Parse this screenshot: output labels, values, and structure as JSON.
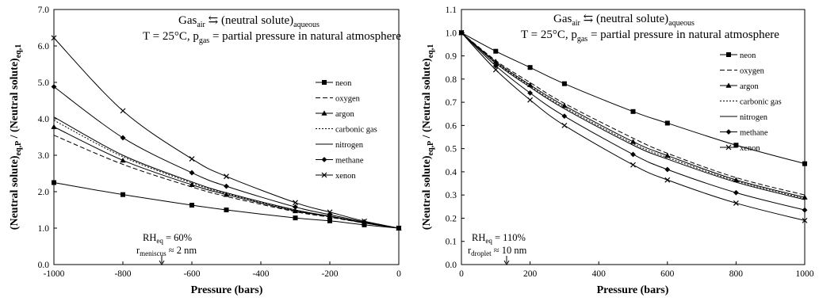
{
  "figure": {
    "panels": [
      {
        "equation": {
          "gas": "Gas",
          "gas_sub": "air",
          "arrow": " ⇆ (neutral solute)",
          "aq_sub": "aqueous"
        },
        "condition": {
          "t": "T = 25°C, p",
          "p_sub": "gas",
          "rest": " = partial pressure in natural atmosphere"
        },
        "rh_note": {
          "rh": "RH",
          "rh_sub": "eq",
          "rh_val": " = 60%",
          "r": "r",
          "r_sub": "meniscus",
          "r_val": " ≈ 2 nm"
        }
      },
      {
        "equation": {
          "gas": "Gas",
          "gas_sub": "air",
          "arrow": " ⇆ (neutral solute)",
          "aq_sub": "aqueous"
        },
        "condition": {
          "t": "T = 25°C, p",
          "p_sub": "gas",
          "rest": " = partial pressure in natural atmosphere"
        },
        "rh_note": {
          "rh": "RH",
          "rh_sub": "eq",
          "rh_val": " = 110%",
          "r": "r",
          "r_sub": "droplet",
          "r_val": " ≈ 10 nm"
        }
      }
    ],
    "ylabel": {
      "a": "(Neutral solute)",
      "a_sub": "eq,P",
      "b": " / (Neutral solute)",
      "b_sub": "eq,1"
    },
    "xlabel": "Pressure (bars)"
  },
  "chart_data": [
    {
      "type": "line",
      "xlabel": "Pressure (bars)",
      "xlim": [
        -1000,
        0
      ],
      "ylim": [
        0.0,
        7.0
      ],
      "x_ticks": [
        "-1000",
        "-800",
        "-600",
        "-400",
        "-200",
        "0"
      ],
      "y_ticks": [
        "0.0",
        "1.0",
        "2.0",
        "3.0",
        "4.0",
        "5.0",
        "6.0",
        "7.0"
      ],
      "legend": "center-right",
      "grid": false,
      "series": [
        {
          "name": "neon",
          "marker": "square",
          "dash": "",
          "x": [
            -1000,
            -800,
            -600,
            -500,
            -300,
            -200,
            -100,
            0
          ],
          "y": [
            2.25,
            1.92,
            1.63,
            1.5,
            1.28,
            1.2,
            1.09,
            1.0
          ]
        },
        {
          "name": "oxygen",
          "marker": "none",
          "dash": "6,3",
          "x": [
            -1000,
            -800,
            -600,
            -500,
            -300,
            -200,
            -100,
            0
          ],
          "y": [
            3.55,
            2.75,
            2.13,
            1.87,
            1.45,
            1.3,
            1.14,
            1.0
          ]
        },
        {
          "name": "argon",
          "marker": "triangle",
          "dash": "",
          "x": [
            -1000,
            -800,
            -600,
            -500,
            -300,
            -200,
            -100,
            0
          ],
          "y": [
            3.78,
            2.86,
            2.19,
            1.92,
            1.47,
            1.32,
            1.14,
            1.0
          ]
        },
        {
          "name": "carbonic gas",
          "marker": "none",
          "dash": "2,2",
          "x": [
            -1000,
            -800,
            -600,
            -500,
            -300,
            -200,
            -100,
            0
          ],
          "y": [
            3.96,
            2.96,
            2.24,
            1.95,
            1.49,
            1.33,
            1.15,
            1.0
          ]
        },
        {
          "name": "nitrogen",
          "marker": "none",
          "dash": "",
          "x": [
            -1000,
            -800,
            -600,
            -500,
            -300,
            -200,
            -100,
            0
          ],
          "y": [
            4.05,
            3.0,
            2.27,
            1.97,
            1.5,
            1.33,
            1.15,
            1.0
          ]
        },
        {
          "name": "methane",
          "marker": "diamond",
          "dash": "",
          "x": [
            -1000,
            -800,
            -600,
            -500,
            -300,
            -200,
            -100,
            0
          ],
          "y": [
            4.88,
            3.48,
            2.52,
            2.15,
            1.58,
            1.37,
            1.17,
            1.0
          ]
        },
        {
          "name": "xenon",
          "marker": "x",
          "dash": "",
          "x": [
            -1000,
            -800,
            -600,
            -500,
            -300,
            -200,
            -100,
            0
          ],
          "y": [
            6.22,
            4.22,
            2.9,
            2.42,
            1.7,
            1.44,
            1.19,
            1.0
          ]
        }
      ]
    },
    {
      "type": "line",
      "xlabel": "Pressure (bars)",
      "xlim": [
        0,
        1000
      ],
      "ylim": [
        0.0,
        1.1
      ],
      "x_ticks": [
        "0",
        "200",
        "400",
        "600",
        "800",
        "1000"
      ],
      "y_ticks": [
        "0.0",
        "0.1",
        "0.2",
        "0.3",
        "0.4",
        "0.5",
        "0.6",
        "0.7",
        "0.8",
        "0.9",
        "1.0",
        "1.1"
      ],
      "legend": "top-right",
      "grid": false,
      "series": [
        {
          "name": "neon",
          "marker": "square",
          "dash": "",
          "x": [
            0,
            100,
            200,
            300,
            500,
            600,
            800,
            1000
          ],
          "y": [
            1.0,
            0.92,
            0.85,
            0.78,
            0.66,
            0.61,
            0.515,
            0.435
          ]
        },
        {
          "name": "oxygen",
          "marker": "none",
          "dash": "6,3",
          "x": [
            0,
            100,
            200,
            300,
            500,
            600,
            800,
            1000
          ],
          "y": [
            1.0,
            0.88,
            0.785,
            0.695,
            0.545,
            0.48,
            0.375,
            0.3
          ]
        },
        {
          "name": "argon",
          "marker": "triangle",
          "dash": "",
          "x": [
            0,
            100,
            200,
            300,
            500,
            600,
            800,
            1000
          ],
          "y": [
            1.0,
            0.875,
            0.775,
            0.685,
            0.53,
            0.47,
            0.365,
            0.29
          ]
        },
        {
          "name": "carbonic gas",
          "marker": "none",
          "dash": "2,2",
          "x": [
            0,
            100,
            200,
            300,
            500,
            600,
            800,
            1000
          ],
          "y": [
            1.0,
            0.872,
            0.77,
            0.678,
            0.522,
            0.462,
            0.36,
            0.285
          ]
        },
        {
          "name": "nitrogen",
          "marker": "none",
          "dash": "",
          "x": [
            0,
            100,
            200,
            300,
            500,
            600,
            800,
            1000
          ],
          "y": [
            1.0,
            0.868,
            0.765,
            0.672,
            0.515,
            0.455,
            0.355,
            0.28
          ]
        },
        {
          "name": "methane",
          "marker": "diamond",
          "dash": "",
          "x": [
            0,
            100,
            200,
            300,
            500,
            600,
            800,
            1000
          ],
          "y": [
            1.0,
            0.857,
            0.74,
            0.64,
            0.475,
            0.41,
            0.31,
            0.235
          ]
        },
        {
          "name": "xenon",
          "marker": "x",
          "dash": "",
          "x": [
            0,
            100,
            200,
            300,
            500,
            600,
            800,
            1000
          ],
          "y": [
            1.0,
            0.84,
            0.71,
            0.6,
            0.43,
            0.365,
            0.265,
            0.19
          ]
        }
      ]
    }
  ]
}
